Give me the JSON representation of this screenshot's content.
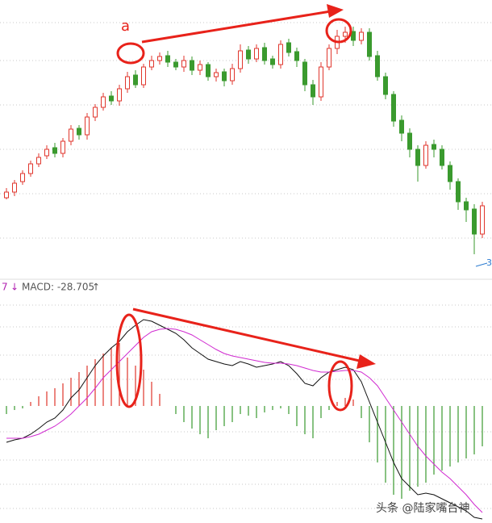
{
  "chart_data": [
    {
      "type": "candlestick",
      "annotation": "a",
      "corner_label": "3",
      "up_color": "#e0362c",
      "down_color": "#3a9a2e",
      "ylim": [
        0,
        345
      ],
      "open": [
        100,
        107,
        120,
        130,
        142,
        152,
        162,
        155,
        170,
        186,
        178,
        200,
        212,
        226,
        220,
        235,
        252,
        240,
        262,
        270,
        276,
        268,
        262,
        270,
        258,
        265,
        250,
        256,
        245,
        260,
        283,
        272,
        286,
        272,
        265,
        292,
        281,
        268,
        240,
        225,
        262,
        285,
        300,
        306,
        295,
        305,
        276,
        250,
        228,
        196,
        180,
        160,
        140,
        166,
        160,
        140,
        120,
        95,
        86,
        55
      ],
      "high": [
        112,
        122,
        134,
        146,
        155,
        165,
        168,
        174,
        190,
        190,
        205,
        216,
        230,
        232,
        240,
        256,
        258,
        266,
        276,
        280,
        282,
        272,
        276,
        275,
        270,
        268,
        260,
        260,
        266,
        290,
        288,
        290,
        292,
        276,
        295,
        297,
        286,
        272,
        246,
        268,
        290,
        308,
        312,
        312,
        310,
        310,
        282,
        255,
        232,
        202,
        186,
        165,
        170,
        172,
        165,
        145,
        124,
        100,
        92,
        95
      ],
      "low": [
        98,
        102,
        116,
        126,
        138,
        148,
        150,
        150,
        165,
        172,
        172,
        195,
        208,
        215,
        214,
        230,
        236,
        236,
        258,
        265,
        262,
        258,
        256,
        252,
        252,
        245,
        244,
        238,
        240,
        255,
        266,
        268,
        265,
        260,
        260,
        275,
        262,
        232,
        215,
        220,
        258,
        278,
        292,
        288,
        290,
        270,
        245,
        222,
        188,
        170,
        150,
        120,
        136,
        150,
        135,
        110,
        85,
        70,
        30,
        50
      ],
      "close": [
        107,
        118,
        130,
        142,
        150,
        160,
        155,
        170,
        185,
        178,
        200,
        212,
        225,
        220,
        235,
        250,
        240,
        262,
        270,
        275,
        268,
        262,
        270,
        258,
        265,
        250,
        255,
        245,
        260,
        282,
        272,
        285,
        270,
        265,
        290,
        280,
        270,
        240,
        225,
        262,
        285,
        300,
        305,
        295,
        305,
        275,
        250,
        228,
        195,
        180,
        160,
        140,
        165,
        160,
        140,
        120,
        95,
        85,
        55,
        90
      ]
    },
    {
      "type": "macd",
      "header": [
        "7",
        "↓",
        "MACD: -28.705",
        "↑"
      ],
      "ylim": [
        -145,
        145
      ],
      "histogram": {
        "up_color": "#e0362c",
        "down_color": "#3a9a2e",
        "values": [
          -10,
          -5,
          -3,
          5,
          12,
          18,
          22,
          28,
          35,
          42,
          50,
          58,
          65,
          72,
          78,
          60,
          50,
          45,
          30,
          15,
          0,
          -10,
          -20,
          -28,
          -35,
          -40,
          -30,
          -25,
          -20,
          -10,
          -12,
          -15,
          -8,
          -5,
          -3,
          -10,
          -25,
          -35,
          -40,
          -15,
          -5,
          5,
          10,
          8,
          -15,
          -45,
          -70,
          -95,
          -110,
          -115,
          -105,
          -100,
          -95,
          -85,
          -80,
          -75,
          -70,
          -65,
          -60,
          -50
        ]
      },
      "series": [
        {
          "color": "#111111",
          "values": [
            -45,
            -42,
            -40,
            -35,
            -28,
            -20,
            -15,
            -5,
            10,
            20,
            35,
            50,
            62,
            72,
            80,
            92,
            100,
            107,
            105,
            100,
            95,
            90,
            82,
            72,
            65,
            58,
            55,
            52,
            50,
            55,
            52,
            48,
            50,
            52,
            55,
            50,
            40,
            28,
            25,
            35,
            42,
            45,
            48,
            45,
            30,
            5,
            -20,
            -45,
            -70,
            -90,
            -100,
            -110,
            -108,
            -110,
            -115,
            -120,
            -125,
            -130,
            -138,
            -140
          ]
        },
        {
          "color": "#d02ad0",
          "values": [
            -40,
            -40,
            -40,
            -38,
            -35,
            -30,
            -25,
            -18,
            -10,
            0,
            10,
            22,
            35,
            45,
            55,
            65,
            75,
            85,
            92,
            95,
            96,
            95,
            92,
            88,
            82,
            76,
            70,
            65,
            62,
            60,
            58,
            56,
            54,
            53,
            53,
            52,
            50,
            47,
            44,
            42,
            42,
            43,
            44,
            44,
            42,
            35,
            25,
            10,
            -5,
            -20,
            -35,
            -50,
            -62,
            -72,
            -82,
            -90,
            -100,
            -110,
            -122,
            -132
          ]
        }
      ]
    }
  ],
  "watermark": "头条 @陆家嘴台神"
}
